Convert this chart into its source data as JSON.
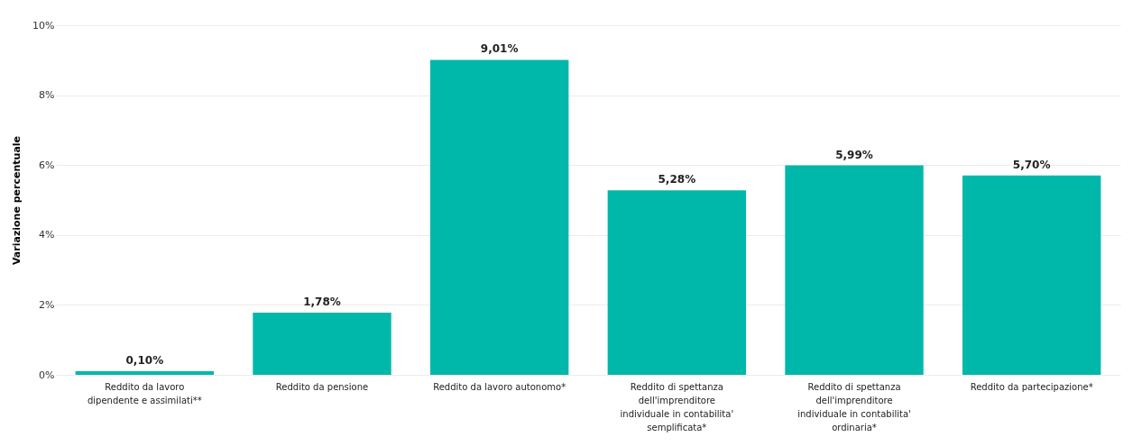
{
  "chart_data": {
    "type": "bar",
    "ylabel": "Variazione percentuale",
    "categories": [
      "Reddito da lavoro dipendente e assimilati**",
      "Reddito da pensione",
      "Reddito da lavoro autonomo*",
      "Reddito di spettanza dell'imprenditore individuale in contabilita' semplificata*",
      "Reddito di spettanza dell'imprenditore individuale in contabilita' ordinaria*",
      "Reddito da partecipazione*"
    ],
    "values": [
      0.1,
      1.78,
      9.01,
      5.28,
      5.99,
      5.7
    ],
    "value_labels": [
      "0,10%",
      "1,78%",
      "9,01%",
      "5,28%",
      "5,99%",
      "5,70%"
    ],
    "color": "#00b8a9",
    "ylim": [
      0,
      10
    ],
    "yticks": [
      {
        "value": 0,
        "label": "0%"
      },
      {
        "value": 2,
        "label": "2%"
      },
      {
        "value": 4,
        "label": "4%"
      },
      {
        "value": 6,
        "label": "6%"
      },
      {
        "value": 8,
        "label": "8%"
      },
      {
        "value": 10,
        "label": "10%"
      }
    ],
    "grid": "y"
  }
}
